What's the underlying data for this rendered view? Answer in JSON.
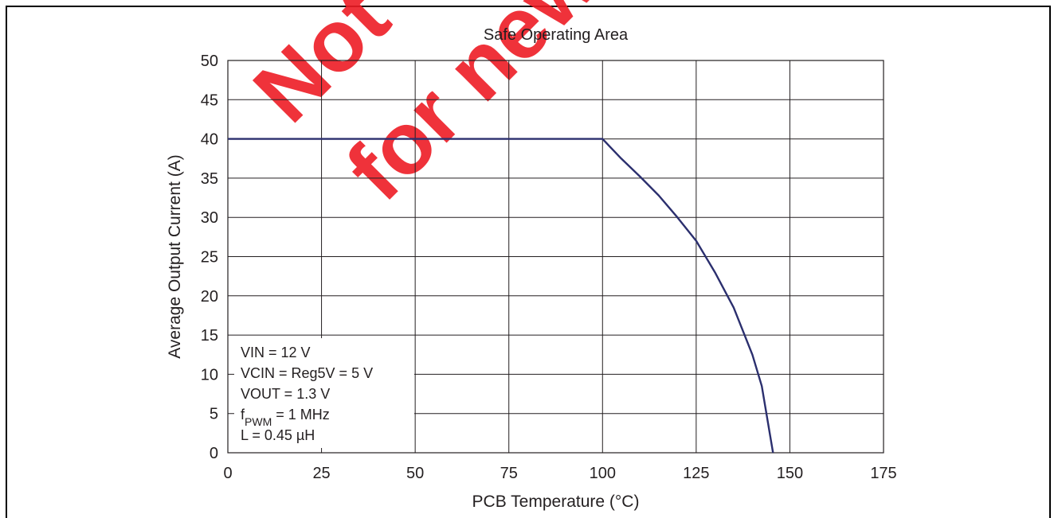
{
  "chart_data": {
    "type": "line",
    "title": "Safe Operating Area",
    "xlabel": "PCB Temperature (°C)",
    "ylabel": "Average Output Current (A)",
    "xlim": [
      0,
      175
    ],
    "ylim": [
      0,
      50
    ],
    "x_ticks": [
      "0",
      "25",
      "50",
      "75",
      "100",
      "125",
      "150",
      "175"
    ],
    "y_ticks": [
      "0",
      "5",
      "10",
      "15",
      "20",
      "25",
      "30",
      "35",
      "40",
      "45",
      "50"
    ],
    "grid": true,
    "series": [
      {
        "color": "#2b2f6e",
        "x": [
          0,
          100,
          105,
          110,
          115,
          120,
          125,
          130,
          135,
          140,
          142.5,
          145.5
        ],
        "y": [
          40,
          40,
          37.5,
          35.2,
          32.8,
          30,
          27,
          23,
          18.5,
          12.5,
          8.5,
          0
        ]
      }
    ],
    "annotation": {
      "lines": [
        {
          "text": "VIN = 12 V"
        },
        {
          "text": "VCIN = Reg5V = 5 V"
        },
        {
          "text": "VOUT = 1.3 V"
        },
        {
          "prefix": "f",
          "sub": "PWM",
          "suffix": " = 1 MHz"
        },
        {
          "text": "L = 0.45 µH"
        }
      ]
    },
    "watermark": [
      "Not",
      "for new"
    ]
  }
}
